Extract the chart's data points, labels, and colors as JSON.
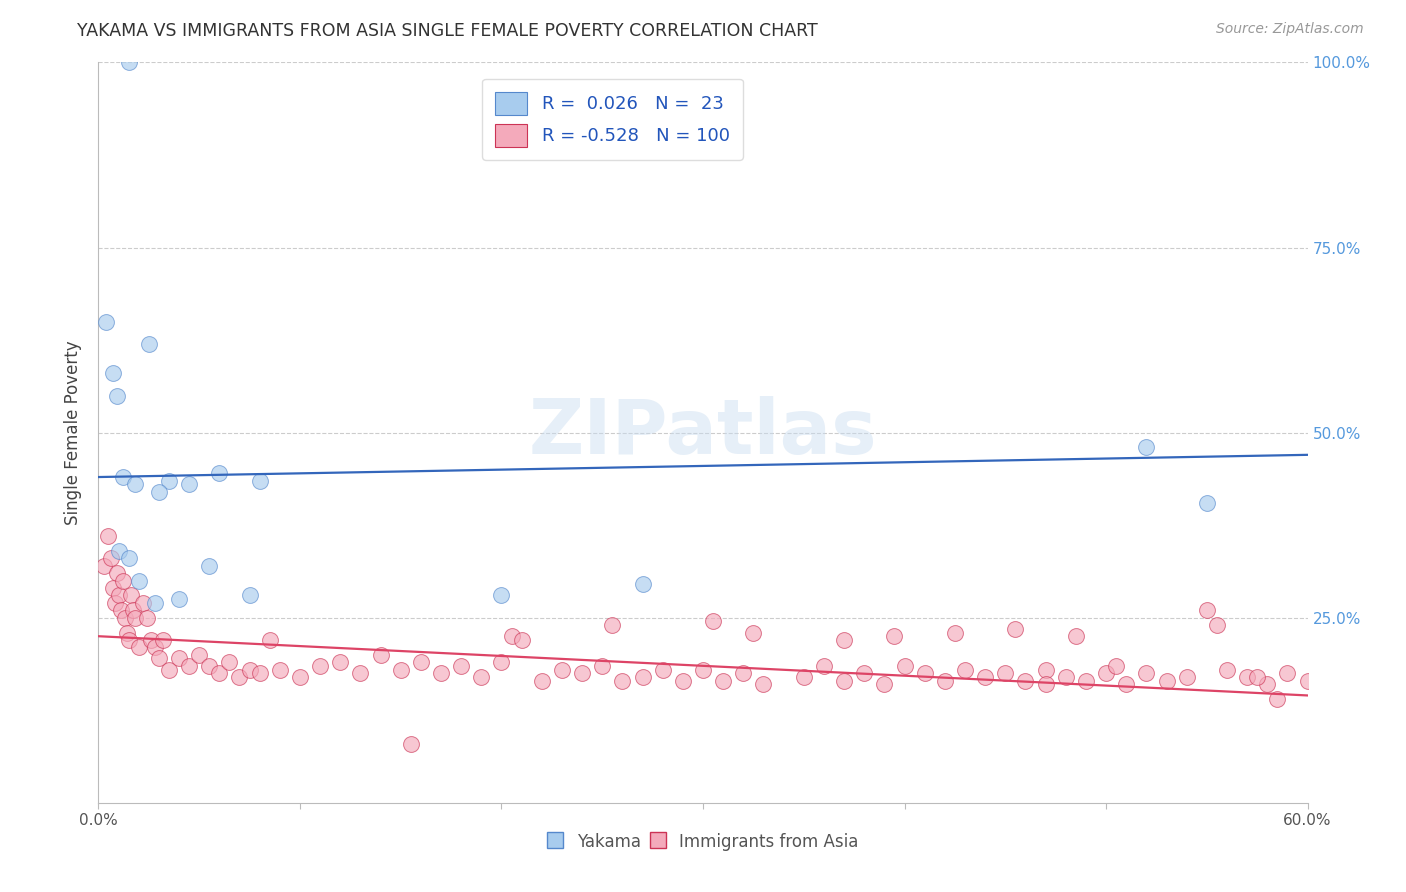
{
  "title": "YAKAMA VS IMMIGRANTS FROM ASIA SINGLE FEMALE POVERTY CORRELATION CHART",
  "source": "Source: ZipAtlas.com",
  "ylabel": "Single Female Poverty",
  "xlim": [
    0,
    60
  ],
  "ylim": [
    0,
    100
  ],
  "watermark": "ZIPatlas",
  "blue_color": "#A8CCEE",
  "pink_color": "#F4AABB",
  "blue_line_color": "#3366BB",
  "pink_line_color": "#DD4466",
  "blue_edge_color": "#5588CC",
  "pink_edge_color": "#CC3355",
  "yakama_x": [
    1.5,
    0.4,
    0.7,
    0.9,
    2.5,
    3.5,
    1.2,
    1.8,
    3.0,
    2.0,
    6.0,
    4.5,
    7.5,
    20.0,
    27.0,
    52.0,
    55.0,
    1.0,
    1.5,
    2.8,
    4.0,
    5.5,
    8.0
  ],
  "yakama_y": [
    100.0,
    65.0,
    58.0,
    55.0,
    62.0,
    43.5,
    44.0,
    43.0,
    42.0,
    30.0,
    44.5,
    43.0,
    28.0,
    28.0,
    29.5,
    48.0,
    40.5,
    34.0,
    33.0,
    27.0,
    27.5,
    32.0,
    43.5
  ],
  "asia_x": [
    0.3,
    0.5,
    0.6,
    0.7,
    0.8,
    0.9,
    1.0,
    1.1,
    1.2,
    1.3,
    1.4,
    1.5,
    1.6,
    1.7,
    1.8,
    2.0,
    2.2,
    2.4,
    2.6,
    2.8,
    3.0,
    3.5,
    4.0,
    4.5,
    5.0,
    5.5,
    6.0,
    6.5,
    7.0,
    7.5,
    8.0,
    9.0,
    10.0,
    11.0,
    12.0,
    13.0,
    14.0,
    15.0,
    16.0,
    17.0,
    18.0,
    19.0,
    20.0,
    22.0,
    23.0,
    24.0,
    25.0,
    26.0,
    27.0,
    28.0,
    29.0,
    30.0,
    31.0,
    32.0,
    33.0,
    35.0,
    36.0,
    37.0,
    38.0,
    39.0,
    40.0,
    41.0,
    42.0,
    43.0,
    44.0,
    45.0,
    46.0,
    47.0,
    48.0,
    49.0,
    50.0,
    51.0,
    52.0,
    53.0,
    54.0,
    55.0,
    56.0,
    57.0,
    58.0,
    59.0,
    60.0,
    3.2,
    8.5,
    20.5,
    25.5,
    32.5,
    39.5,
    45.5,
    30.5,
    42.5,
    37.0,
    48.5,
    55.5,
    57.5,
    47.0,
    50.5,
    58.5,
    15.5,
    21.0
  ],
  "asia_y": [
    32.0,
    36.0,
    33.0,
    29.0,
    27.0,
    31.0,
    28.0,
    26.0,
    30.0,
    25.0,
    23.0,
    22.0,
    28.0,
    26.0,
    25.0,
    21.0,
    27.0,
    25.0,
    22.0,
    21.0,
    19.5,
    18.0,
    19.5,
    18.5,
    20.0,
    18.5,
    17.5,
    19.0,
    17.0,
    18.0,
    17.5,
    18.0,
    17.0,
    18.5,
    19.0,
    17.5,
    20.0,
    18.0,
    19.0,
    17.5,
    18.5,
    17.0,
    19.0,
    16.5,
    18.0,
    17.5,
    18.5,
    16.5,
    17.0,
    18.0,
    16.5,
    18.0,
    16.5,
    17.5,
    16.0,
    17.0,
    18.5,
    16.5,
    17.5,
    16.0,
    18.5,
    17.5,
    16.5,
    18.0,
    17.0,
    17.5,
    16.5,
    18.0,
    17.0,
    16.5,
    17.5,
    16.0,
    17.5,
    16.5,
    17.0,
    26.0,
    18.0,
    17.0,
    16.0,
    17.5,
    16.5,
    22.0,
    22.0,
    22.5,
    24.0,
    23.0,
    22.5,
    23.5,
    24.5,
    23.0,
    22.0,
    22.5,
    24.0,
    17.0,
    16.0,
    18.5,
    14.0,
    8.0,
    22.0
  ],
  "blue_trend_x0": 0,
  "blue_trend_y0": 44.0,
  "blue_trend_x1": 60,
  "blue_trend_y1": 47.0,
  "pink_trend_x0": 0,
  "pink_trend_y0": 22.5,
  "pink_trend_x1": 60,
  "pink_trend_y1": 14.5,
  "yticks": [
    0,
    25,
    50,
    75,
    100
  ],
  "ytick_labels_right": [
    "",
    "25.0%",
    "50.0%",
    "75.0%",
    "100.0%"
  ],
  "xtick_positions": [
    0,
    10,
    20,
    30,
    40,
    50,
    60
  ],
  "xtick_labels": [
    "0.0%",
    "",
    "",
    "",
    "",
    "",
    "60.0%"
  ],
  "grid_color": "#CCCCCC",
  "grid_style": "--",
  "title_color": "#333333",
  "source_color": "#999999",
  "right_label_color": "#5599DD",
  "axis_color": "#BBBBBB",
  "legend_label_color": "#2255BB",
  "bottom_label_color": "#555555",
  "marker_size": 130,
  "marker_alpha": 0.65,
  "marker_linewidth": 0.7
}
